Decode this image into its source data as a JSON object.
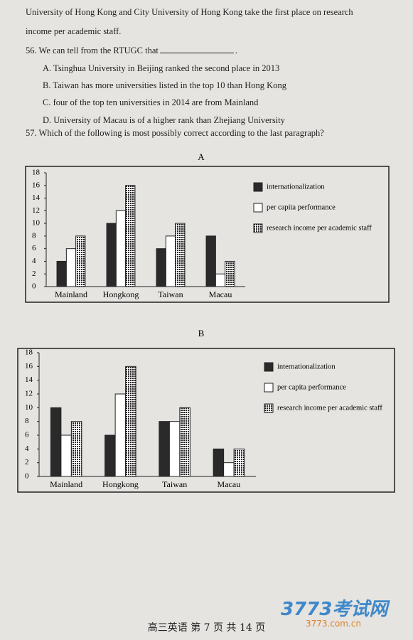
{
  "passage": [
    "University of Hong Kong and City University of Hong Kong take the first place on research",
    "income per academic staff."
  ],
  "question_56": {
    "stem": "56. We can tell from the RTUGC that",
    "stem_end": ".",
    "options": [
      "A. Tsinghua University in Beijing ranked the second place in 2013",
      "B. Taiwan has more universities listed in the top 10 than Hong Kong",
      "C. four of the top ten universities in 2014 are from Mainland",
      "D. University of Macau is of a higher rank than Zhejiang University"
    ]
  },
  "question_57": {
    "stem": "57. Which of the following is most possibly correct according to the last paragraph?"
  },
  "chart_data": [
    {
      "type": "bar",
      "title": "A",
      "categories": [
        "Mainland",
        "Hongkong",
        "Taiwan",
        "Macau"
      ],
      "series": [
        {
          "name": "internationalization",
          "color": "#2a2a2a",
          "values": [
            4,
            10,
            6,
            8
          ]
        },
        {
          "name": "per capita performance",
          "color": "#ffffff",
          "values": [
            6,
            12,
            8,
            2
          ]
        },
        {
          "name": "research income per academic staff",
          "color": "#2a2a2a",
          "pattern": "grid",
          "values": [
            8,
            16,
            10,
            4
          ]
        }
      ],
      "ylim": [
        0,
        18
      ],
      "yticks": [
        0,
        2,
        4,
        6,
        8,
        10,
        12,
        14,
        16,
        18
      ],
      "legend": "right"
    },
    {
      "type": "bar",
      "title": "B",
      "categories": [
        "Mainland",
        "Hongkong",
        "Taiwan",
        "Macau"
      ],
      "series": [
        {
          "name": "internationalization",
          "color": "#2a2a2a",
          "values": [
            10,
            6,
            8,
            4
          ]
        },
        {
          "name": "per capita performance",
          "color": "#ffffff",
          "values": [
            6,
            12,
            8,
            2
          ]
        },
        {
          "name": "research income per academic staff",
          "color": "#2a2a2a",
          "pattern": "grid",
          "values": [
            8,
            16,
            10,
            4
          ]
        }
      ],
      "ylim": [
        0,
        18
      ],
      "yticks": [
        0,
        2,
        4,
        6,
        8,
        10,
        12,
        14,
        16,
        18
      ],
      "legend": "right"
    }
  ],
  "footer": "高三英语  第 7 页 共 14 页",
  "watermark": {
    "logo": "3773考试网",
    "url": "3773.com.cn"
  }
}
